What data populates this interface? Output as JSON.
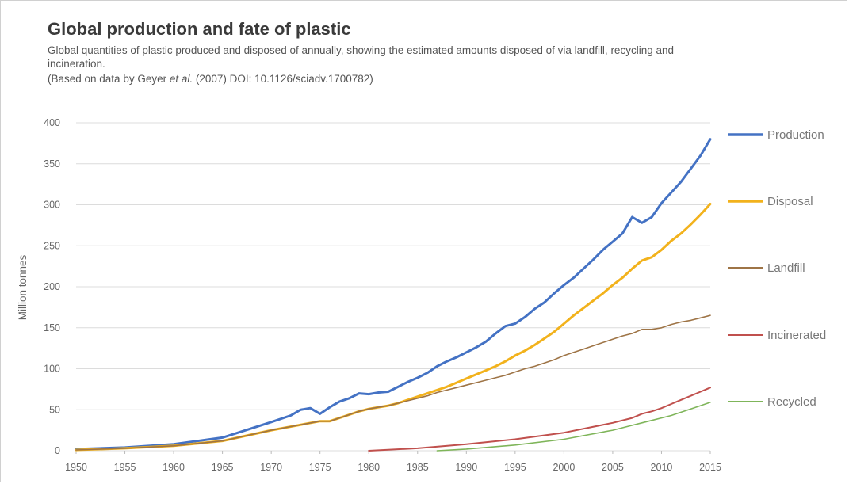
{
  "chart_data": {
    "type": "line",
    "title": "Global production and fate of plastic",
    "subtitle": "Global quantities of plastic produced and disposed of annually, showing the estimated amounts disposed of via landfill, recycling and incineration.",
    "source": {
      "prefix": "(Based on data by Geyer ",
      "italic": "et al.",
      "suffix": " (2007) DOI: 10.1126/sciadv.1700782)"
    },
    "xlabel": "",
    "ylabel": "Million tonnes",
    "xlim": [
      1950,
      2015
    ],
    "ylim": [
      0,
      400
    ],
    "xticks": [
      1950,
      1955,
      1960,
      1965,
      1970,
      1975,
      1980,
      1985,
      1990,
      1995,
      2000,
      2005,
      2010,
      2015
    ],
    "yticks": [
      0,
      50,
      100,
      150,
      200,
      250,
      300,
      350,
      400
    ],
    "grid": true,
    "legend_position": "right",
    "series": [
      {
        "name": "Production",
        "color": "#4472c4",
        "x": [
          1950,
          1955,
          1960,
          1965,
          1970,
          1972,
          1973,
          1974,
          1975,
          1976,
          1977,
          1978,
          1979,
          1980,
          1981,
          1982,
          1983,
          1984,
          1985,
          1986,
          1987,
          1988,
          1989,
          1990,
          1991,
          1992,
          1993,
          1994,
          1995,
          1996,
          1997,
          1998,
          1999,
          2000,
          2001,
          2002,
          2003,
          2004,
          2005,
          2006,
          2007,
          2008,
          2009,
          2010,
          2011,
          2012,
          2013,
          2014,
          2015
        ],
        "y": [
          2,
          4,
          8,
          16,
          35,
          43,
          50,
          52,
          45,
          53,
          60,
          64,
          70,
          69,
          71,
          72,
          78,
          84,
          89,
          95,
          103,
          109,
          114,
          120,
          126,
          133,
          143,
          152,
          155,
          163,
          173,
          181,
          192,
          202,
          211,
          222,
          233,
          245,
          255,
          265,
          285,
          278,
          285,
          302,
          315,
          328,
          344,
          360,
          380
        ]
      },
      {
        "name": "Disposal",
        "color": "#f2b21c",
        "x": [
          1950,
          1955,
          1960,
          1965,
          1970,
          1975,
          1976,
          1977,
          1978,
          1979,
          1980,
          1981,
          1982,
          1983,
          1984,
          1985,
          1986,
          1987,
          1988,
          1989,
          1990,
          1991,
          1992,
          1993,
          1994,
          1995,
          1996,
          1997,
          1998,
          1999,
          2000,
          2001,
          2002,
          2003,
          2004,
          2005,
          2006,
          2007,
          2008,
          2009,
          2010,
          2011,
          2012,
          2013,
          2014,
          2015
        ],
        "y": [
          1,
          3,
          6,
          12,
          25,
          36,
          36,
          40,
          44,
          48,
          51,
          53,
          55,
          58,
          62,
          66,
          70,
          74,
          78,
          83,
          88,
          93,
          98,
          103,
          109,
          116,
          122,
          129,
          137,
          145,
          155,
          165,
          174,
          183,
          192,
          202,
          211,
          222,
          232,
          236,
          245,
          256,
          265,
          276,
          288,
          301
        ]
      },
      {
        "name": "Landfill",
        "color": "#9e7446",
        "x": [
          1950,
          1955,
          1960,
          1965,
          1970,
          1975,
          1976,
          1977,
          1978,
          1979,
          1980,
          1981,
          1982,
          1983,
          1984,
          1985,
          1986,
          1987,
          1988,
          1989,
          1990,
          1991,
          1992,
          1993,
          1994,
          1995,
          1996,
          1997,
          1998,
          1999,
          2000,
          2001,
          2002,
          2003,
          2004,
          2005,
          2006,
          2007,
          2008,
          2009,
          2010,
          2011,
          2012,
          2013,
          2014,
          2015
        ],
        "y": [
          1,
          3,
          6,
          12,
          25,
          36,
          36,
          40,
          44,
          48,
          51,
          53,
          55,
          58,
          61,
          64,
          67,
          71,
          74,
          77,
          80,
          83,
          86,
          89,
          92,
          96,
          100,
          103,
          107,
          111,
          116,
          120,
          124,
          128,
          132,
          136,
          140,
          143,
          148,
          148,
          150,
          154,
          157,
          159,
          162,
          165
        ]
      },
      {
        "name": "Incinerated",
        "color": "#c0504d",
        "x": [
          1980,
          1985,
          1990,
          1995,
          2000,
          2005,
          2007,
          2008,
          2009,
          2010,
          2011,
          2012,
          2013,
          2014,
          2015
        ],
        "y": [
          0,
          3,
          8,
          14,
          22,
          34,
          40,
          45,
          48,
          52,
          57,
          62,
          67,
          72,
          77
        ]
      },
      {
        "name": "Recycled",
        "color": "#7fb55a",
        "x": [
          1987,
          1990,
          1995,
          2000,
          2005,
          2007,
          2008,
          2009,
          2010,
          2011,
          2012,
          2013,
          2014,
          2015
        ],
        "y": [
          0,
          2,
          7,
          14,
          25,
          31,
          34,
          37,
          40,
          43,
          47,
          51,
          55,
          59
        ]
      }
    ]
  }
}
